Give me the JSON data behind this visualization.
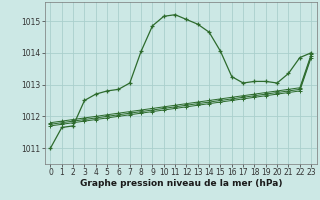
{
  "xlabel": "Graphe pression niveau de la mer (hPa)",
  "background_color": "#cce8e5",
  "grid_color": "#aacfcc",
  "line_color": "#2d6b2d",
  "xlim": [
    -0.5,
    23.5
  ],
  "ylim": [
    1010.5,
    1015.6
  ],
  "yticks": [
    1011,
    1012,
    1013,
    1014,
    1015
  ],
  "xticks": [
    0,
    1,
    2,
    3,
    4,
    5,
    6,
    7,
    8,
    9,
    10,
    11,
    12,
    13,
    14,
    15,
    16,
    17,
    18,
    19,
    20,
    21,
    22,
    23
  ],
  "main_series_x": [
    0,
    1,
    2,
    3,
    4,
    5,
    6,
    7,
    8,
    9,
    10,
    11,
    12,
    13,
    14,
    15,
    16,
    17,
    18,
    19,
    20,
    21,
    22,
    23
  ],
  "main_series_y": [
    1011.0,
    1011.65,
    1011.7,
    1012.5,
    1012.7,
    1012.8,
    1012.85,
    1013.05,
    1014.05,
    1014.85,
    1015.15,
    1015.2,
    1015.05,
    1014.9,
    1014.65,
    1014.05,
    1013.25,
    1013.05,
    1013.1,
    1013.1,
    1013.05,
    1013.35,
    1013.85,
    1014.0
  ],
  "trend1_x": [
    0,
    1,
    2,
    3,
    4,
    5,
    6,
    7,
    8,
    9,
    10,
    11,
    12,
    13,
    14,
    15,
    16,
    17,
    18,
    19,
    20,
    21,
    22,
    23
  ],
  "trend1_y": [
    1011.7,
    1011.75,
    1011.8,
    1011.85,
    1011.9,
    1011.95,
    1012.0,
    1012.05,
    1012.1,
    1012.15,
    1012.2,
    1012.25,
    1012.3,
    1012.35,
    1012.4,
    1012.45,
    1012.5,
    1012.55,
    1012.6,
    1012.65,
    1012.7,
    1012.75,
    1012.8,
    1013.85
  ],
  "trend2_x": [
    0,
    1,
    2,
    3,
    4,
    5,
    6,
    7,
    8,
    9,
    10,
    11,
    12,
    13,
    14,
    15,
    16,
    17,
    18,
    19,
    20,
    21,
    22,
    23
  ],
  "trend2_y": [
    1011.75,
    1011.8,
    1011.85,
    1011.9,
    1011.95,
    1012.0,
    1012.05,
    1012.1,
    1012.15,
    1012.2,
    1012.25,
    1012.3,
    1012.35,
    1012.4,
    1012.45,
    1012.5,
    1012.55,
    1012.6,
    1012.65,
    1012.7,
    1012.75,
    1012.8,
    1012.85,
    1013.9
  ],
  "trend3_x": [
    0,
    1,
    2,
    3,
    4,
    5,
    6,
    7,
    8,
    9,
    10,
    11,
    12,
    13,
    14,
    15,
    16,
    17,
    18,
    19,
    20,
    21,
    22,
    23
  ],
  "trend3_y": [
    1011.8,
    1011.85,
    1011.9,
    1011.95,
    1012.0,
    1012.05,
    1012.1,
    1012.15,
    1012.2,
    1012.25,
    1012.3,
    1012.35,
    1012.4,
    1012.45,
    1012.5,
    1012.55,
    1012.6,
    1012.65,
    1012.7,
    1012.75,
    1012.8,
    1012.85,
    1012.9,
    1013.95
  ],
  "xlabel_fontsize": 6.5,
  "xlabel_color": "#1a1a1a",
  "tick_fontsize": 5.5,
  "tick_color": "#333333",
  "marker_size": 3.5,
  "line_width": 0.9
}
